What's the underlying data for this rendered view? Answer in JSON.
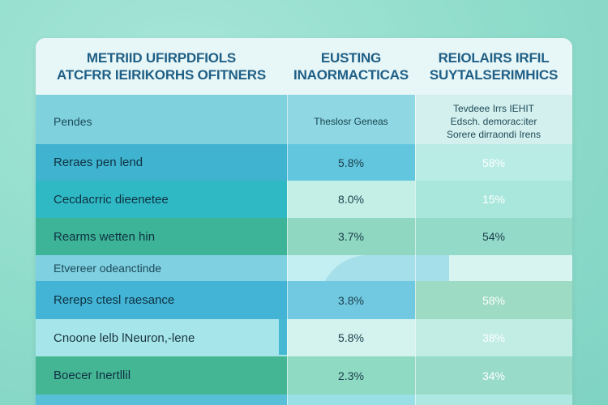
{
  "header": {
    "col1_line1": "METRIID UFIRPDFIOLS",
    "col1_line2": "ATCFRR IEIRIKORHS OFITNERS",
    "col2_line1": "EUSTING",
    "col2_line2": "INAORMACTICAS",
    "col3_line1": "REIOLAIRS IRFIL",
    "col3_line2": "SUYTALSERIMHICS"
  },
  "subheader": {
    "label": "Pendes",
    "col2": "Theslosr Geneas",
    "col3_line1": "Tevdeee Irrs IEHIT",
    "col3_line2": "Edsch. demorac:iter",
    "col3_line3": "Sorere dirraondi Irens"
  },
  "rows": [
    {
      "label": "Reraes pen lend",
      "v1": "5.8%",
      "v2": "58%"
    },
    {
      "label": "Cecdacrric dieenetee",
      "v1": "8.0%",
      "v2": "15%"
    },
    {
      "label": "Rearms wetten hin",
      "v1": "3.7%",
      "v2": "54%"
    }
  ],
  "section": {
    "label": "Etvereer odeanctinde"
  },
  "rows2": [
    {
      "label": "Rereps ctesl raesance",
      "v1": "3.8%",
      "v2": "58%"
    },
    {
      "label": "Cnoone lelb lNeuron,-lene",
      "v1": "5.8%",
      "v2": "38%"
    },
    {
      "label": "Boecer Inertllil",
      "v1": "2.3%",
      "v2": "34%"
    }
  ],
  "colors": {
    "background": "#8fdccb",
    "header_text": "#1f5f86",
    "accent_blue": "#3fb3cf",
    "accent_green": "#3db497"
  }
}
